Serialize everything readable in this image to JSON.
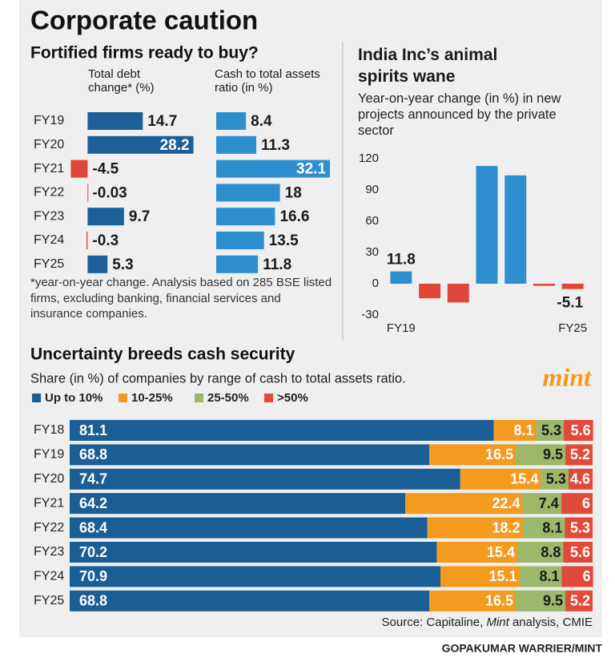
{
  "title": "Corporate caution",
  "chart_data": [
    {
      "type": "bar",
      "orientation": "horizontal",
      "title": "Fortified firms ready to buy?",
      "categories": [
        "FY19",
        "FY20",
        "FY21",
        "FY22",
        "FY23",
        "FY24",
        "FY25"
      ],
      "series": [
        {
          "name": "Total debt change* (%)",
          "color": "#1d5f98",
          "negative_color": "#e0473a",
          "xlim": [
            -5,
            30
          ],
          "values": [
            14.7,
            28.2,
            -4.5,
            -0.03,
            9.7,
            -0.3,
            5.3
          ]
        },
        {
          "name": "Cash to total assets ratio (in %)",
          "color": "#2e8fd0",
          "negative_color": "#e0473a",
          "xlim": [
            0,
            33
          ],
          "values": [
            8.4,
            11.3,
            32.1,
            18,
            16.6,
            13.5,
            11.8
          ]
        }
      ],
      "note": "*year-on-year change. Analysis based on 285 BSE listed firms, excluding banking, financial services and insurance companies."
    },
    {
      "type": "bar",
      "title": "India Inc’s animal spirits wane",
      "subtitle": "Year-on-year change (in %) in new projects announced by the private sector",
      "categories": [
        "FY19",
        null,
        null,
        null,
        null,
        null,
        "FY25"
      ],
      "values": [
        11.8,
        -14,
        -18,
        113,
        104,
        -2,
        -5.1
      ],
      "color": "#2e8fd0",
      "negative_color": "#e0473a",
      "ylim": [
        -30,
        120
      ],
      "yticks": [
        -30,
        0,
        30,
        60,
        90,
        120
      ],
      "grid": false
    },
    {
      "type": "stacked-bar",
      "title": "Uncertainty breeds cash security",
      "subtitle": "Share (in %) of companies by range of cash to total assets ratio.",
      "categories": [
        "FY18",
        "FY19",
        "FY20",
        "FY21",
        "FY22",
        "FY23",
        "FY24",
        "FY25"
      ],
      "xlim": [
        0,
        100
      ],
      "series": [
        {
          "name": "Up to 10%",
          "color": "#1b5e96",
          "label_color": "#ffffff",
          "values": [
            81.1,
            68.8,
            74.7,
            64.2,
            68.4,
            70.2,
            70.9,
            68.8
          ]
        },
        {
          "name": "10-25%",
          "color": "#f39a1f",
          "label_color": "#ffffff",
          "values": [
            8.1,
            16.5,
            15.4,
            22.4,
            18.2,
            15.4,
            15.1,
            16.5
          ]
        },
        {
          "name": "25-50%",
          "color": "#9cb86a",
          "label_color": "#1a1a1a",
          "values": [
            5.3,
            9.5,
            5.3,
            7.4,
            8.1,
            8.8,
            8.1,
            9.5
          ]
        },
        {
          "name": ">50%",
          "color": "#e04a3a",
          "label_color": "#ffffff",
          "values": [
            5.6,
            5.2,
            4.6,
            6,
            5.3,
            5.6,
            6,
            5.2
          ]
        }
      ]
    }
  ],
  "logo": "mint",
  "source": [
    "Source: Capitaline, ",
    "Mint",
    " analysis, CMIE"
  ],
  "credit": "GOPAKUMAR WARRIER/MINT"
}
